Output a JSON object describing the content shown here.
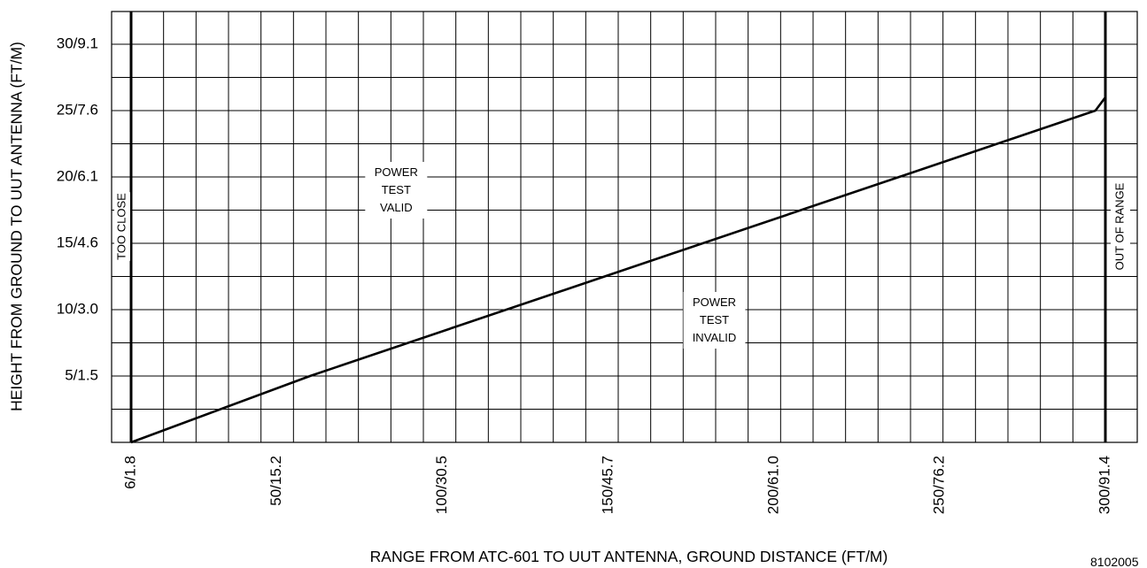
{
  "chart_data": {
    "type": "line",
    "title": "",
    "xlabel": "RANGE FROM ATC-601 TO UUT ANTENNA, GROUND DISTANCE (FT/M)",
    "ylabel": "HEIGHT FROM GROUND TO UUT ANTENNA (FT/M)",
    "xlim": [
      0,
      310
    ],
    "ylim": [
      0,
      32.5
    ],
    "x_ticks": [
      {
        "value": 6,
        "label": "6/1.8"
      },
      {
        "value": 50,
        "label": "50/15.2"
      },
      {
        "value": 100,
        "label": "100/30.5"
      },
      {
        "value": 150,
        "label": "150/45.7"
      },
      {
        "value": 200,
        "label": "200/61.0"
      },
      {
        "value": 250,
        "label": "250/76.2"
      },
      {
        "value": 300,
        "label": "300/91.4"
      }
    ],
    "y_ticks": [
      {
        "value": 5,
        "label": "5/1.5"
      },
      {
        "value": 10,
        "label": "10/3.0"
      },
      {
        "value": 15,
        "label": "15/4.6"
      },
      {
        "value": 20,
        "label": "20/6.1"
      },
      {
        "value": 25,
        "label": "25/7.6"
      },
      {
        "value": 30,
        "label": "30/9.1"
      }
    ],
    "grid": true,
    "series": [
      {
        "x": [
          6,
          60,
          297,
          300
        ],
        "y": [
          0,
          5,
          25,
          26
        ]
      }
    ],
    "boundaries": [
      {
        "x": 6,
        "label": "TOO CLOSE"
      },
      {
        "x": 300,
        "label": "OUT OF RANGE"
      }
    ],
    "annotations": [
      {
        "lines": [
          "POWER",
          "TEST",
          "VALID"
        ],
        "x": 86,
        "y": 19
      },
      {
        "lines": [
          "POWER",
          "TEST",
          "INVALID"
        ],
        "x": 182,
        "y": 9.2
      }
    ],
    "figure_id": "8102005"
  }
}
